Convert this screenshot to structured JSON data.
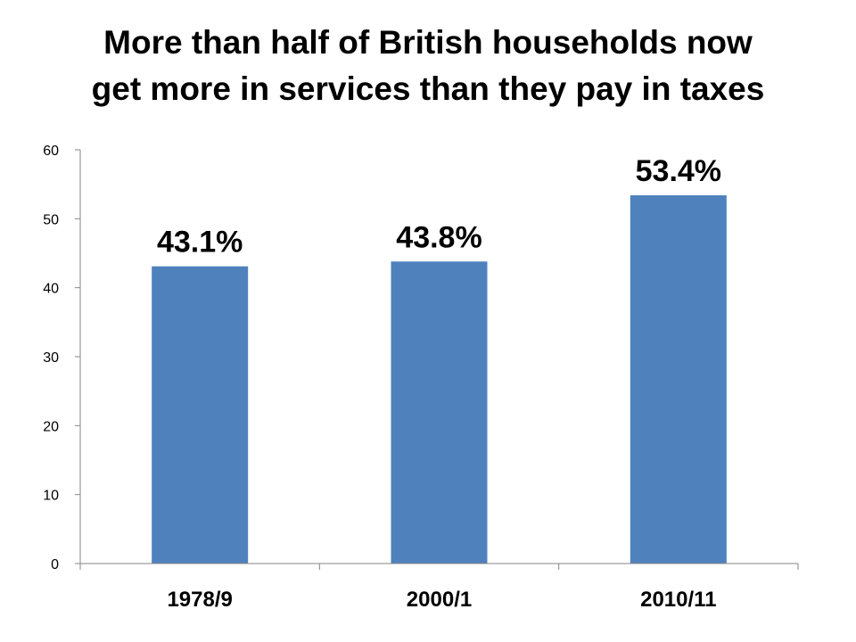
{
  "title_lines": [
    "More than half of British households now",
    "get more in services than they pay in taxes"
  ],
  "chart_data": {
    "type": "bar",
    "categories": [
      "1978/9",
      "2000/1",
      "2010/11"
    ],
    "values": [
      43.1,
      43.8,
      53.4
    ],
    "data_labels": [
      "43.1%",
      "43.8%",
      "53.4%"
    ],
    "title": "More than half of British households now get more in services than they pay in taxes",
    "xlabel": "",
    "ylabel": "",
    "ylim": [
      0,
      60
    ],
    "yticks": [
      0,
      10,
      20,
      30,
      40,
      50,
      60
    ],
    "grid": false,
    "legend": "none",
    "bar_color": "#4F81BD",
    "axis_color": "#868686"
  }
}
